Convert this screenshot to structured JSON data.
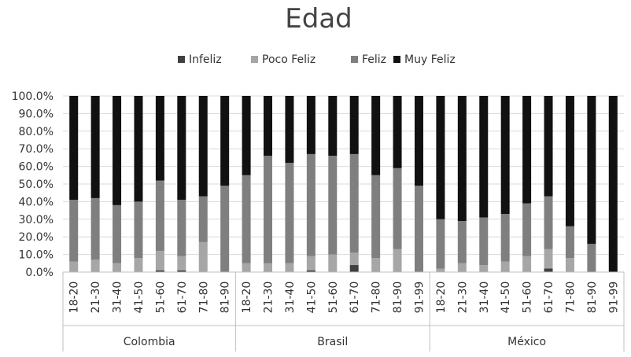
{
  "chart_data": {
    "type": "bar",
    "stacked": true,
    "percent": true,
    "title": "Edad",
    "legend_position": "top",
    "y_ticks": [
      "0.0%",
      "10.0%",
      "20.0%",
      "30.0%",
      "40.0%",
      "50.0%",
      "60.0%",
      "70.0%",
      "80.0%",
      "90.0%",
      "100.0%"
    ],
    "ylim": [
      0,
      100
    ],
    "grid": true,
    "colors": {
      "Infeliz": "#404040",
      "Poco Feliz": "#a6a6a6",
      "Feliz": "#7f7f7f",
      "Muy Feliz": "#111111"
    },
    "groups": [
      {
        "name": "Colombia",
        "categories": [
          "18-20",
          "21-30",
          "31-40",
          "41-50",
          "51-60",
          "61-70",
          "71-80",
          "81-90"
        ],
        "series": [
          {
            "name": "Infeliz",
            "values": [
              0,
              0,
              0,
              0,
              1,
              1,
              0,
              0
            ]
          },
          {
            "name": "Poco Feliz",
            "values": [
              6,
              7,
              5,
              8,
              11,
              8,
              17,
              0
            ]
          },
          {
            "name": "Feliz",
            "values": [
              35,
              35,
              33,
              32,
              40,
              32,
              26,
              49
            ]
          },
          {
            "name": "Muy Feliz",
            "values": [
              59,
              58,
              62,
              60,
              48,
              59,
              57,
              51
            ]
          }
        ]
      },
      {
        "name": "Brasil",
        "categories": [
          "18-20",
          "21-30",
          "31-40",
          "41-50",
          "51-60",
          "61-70",
          "71-80",
          "81-90",
          "91-99"
        ],
        "series": [
          {
            "name": "Infeliz",
            "values": [
              0,
              0,
              0,
              1,
              0,
              4,
              0,
              0,
              0
            ]
          },
          {
            "name": "Poco Feliz",
            "values": [
              5,
              5,
              5,
              8,
              10,
              7,
              8,
              13,
              0
            ]
          },
          {
            "name": "Feliz",
            "values": [
              50,
              61,
              57,
              58,
              56,
              56,
              47,
              46,
              49
            ]
          },
          {
            "name": "Muy Feliz",
            "values": [
              45,
              34,
              38,
              33,
              34,
              33,
              45,
              41,
              51
            ]
          }
        ]
      },
      {
        "name": "México",
        "categories": [
          "18-20",
          "21-30",
          "31-40",
          "41-50",
          "51-60",
          "61-70",
          "71-80",
          "81-90",
          "91-99"
        ],
        "series": [
          {
            "name": "Infeliz",
            "values": [
              0,
              0,
              0,
              0,
              0,
              2,
              0,
              0,
              0
            ]
          },
          {
            "name": "Poco Feliz",
            "values": [
              2,
              5,
              4,
              6,
              9,
              11,
              8,
              0,
              0
            ]
          },
          {
            "name": "Feliz",
            "values": [
              28,
              24,
              27,
              27,
              30,
              30,
              18,
              16,
              0
            ]
          },
          {
            "name": "Muy Feliz",
            "values": [
              70,
              71,
              69,
              67,
              61,
              57,
              74,
              84,
              100
            ]
          }
        ]
      }
    ]
  }
}
